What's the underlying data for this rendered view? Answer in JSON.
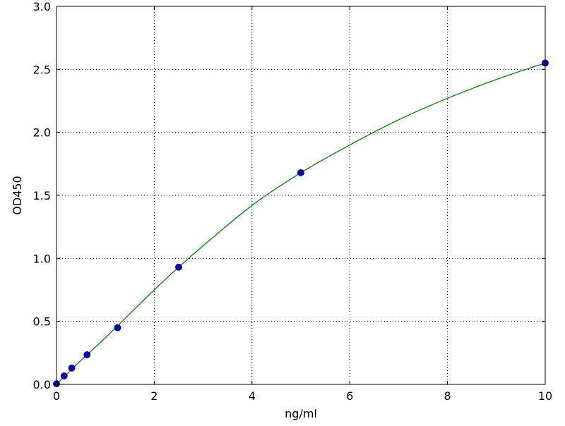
{
  "chart_data": {
    "type": "scatter",
    "title": "",
    "xlabel": "ng/ml",
    "ylabel": "OD450",
    "xlim": [
      0,
      10
    ],
    "ylim": [
      0,
      3.0
    ],
    "xticks": [
      "0",
      "2",
      "4",
      "6",
      "8",
      "10"
    ],
    "yticks": [
      "0.0",
      "0.5",
      "1.0",
      "1.5",
      "2.0",
      "2.5",
      "3.0"
    ],
    "grid": true,
    "legend": "none",
    "series": [
      {
        "kind": "points",
        "color": "#0000c0",
        "x": [
          0,
          0.156,
          0.3125,
          0.625,
          1.25,
          2.5,
          5,
          10
        ],
        "y": [
          0.005,
          0.067,
          0.13,
          0.235,
          0.45,
          0.93,
          1.68,
          2.55
        ]
      },
      {
        "kind": "fit-line",
        "color": "#008000",
        "x": [
          0,
          0.5,
          1,
          1.5,
          2,
          2.5,
          3,
          4,
          5,
          6,
          7,
          8,
          9,
          10
        ],
        "y": [
          0.0,
          0.19,
          0.37,
          0.56,
          0.75,
          0.93,
          1.1,
          1.42,
          1.68,
          1.9,
          2.1,
          2.27,
          2.42,
          2.55
        ]
      }
    ]
  }
}
